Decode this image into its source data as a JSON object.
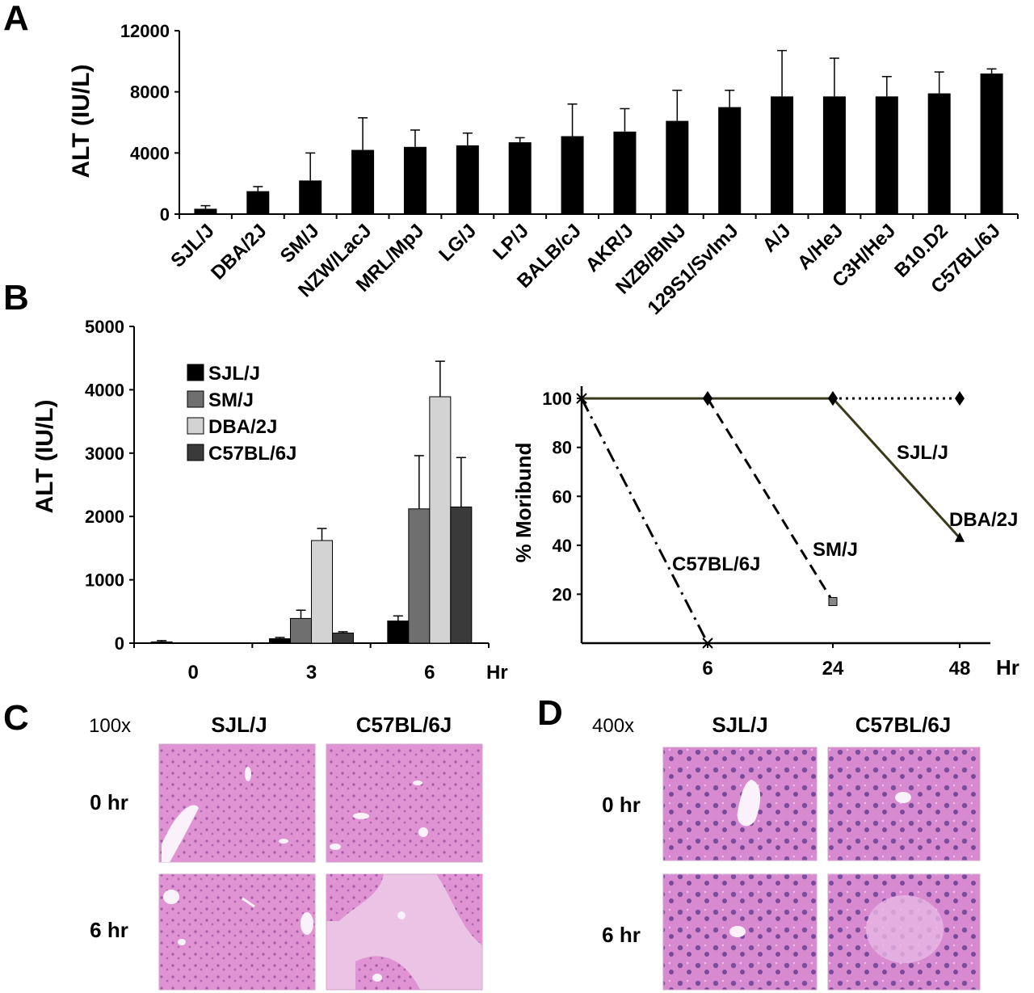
{
  "panels": {
    "a": "A",
    "b": "B",
    "c": "C",
    "d": "D"
  },
  "chart_data": [
    {
      "type": "bar",
      "ylabel": "ALT (IU/L)",
      "ylim": [
        0,
        12000
      ],
      "yticks": [
        "0",
        "4000",
        "8000",
        "12000"
      ],
      "categories": [
        "SJL/J",
        "DBA/2J",
        "SM/J",
        "NZW/LacJ",
        "MRL/MpJ",
        "LG/J",
        "LP/J",
        "BALB/cJ",
        "AKR/J",
        "NZB/BINJ",
        "129S1/SvImJ",
        "A/J",
        "A/HeJ",
        "C3H/HeJ",
        "B10.D2",
        "C57BL/6J"
      ],
      "values": [
        350,
        1500,
        2200,
        4200,
        4400,
        4500,
        4700,
        5100,
        5400,
        6100,
        7000,
        7700,
        7700,
        7700,
        7900,
        9200
      ],
      "errors": [
        200,
        300,
        1800,
        2100,
        1100,
        800,
        300,
        2100,
        1500,
        2000,
        1100,
        3000,
        2500,
        1300,
        1400,
        300
      ],
      "grid": false
    },
    {
      "type": "bar",
      "ylabel": "ALT (IU/L)",
      "ylim": [
        0,
        5000
      ],
      "yticks": [
        "0",
        "1000",
        "2000",
        "3000",
        "4000",
        "5000"
      ],
      "categories": [
        "0",
        "3",
        "6"
      ],
      "x_unit": "Hr",
      "legend_position": "top-left",
      "series": [
        {
          "name": "SJL/J",
          "color": "#000000",
          "values": [
            20,
            70,
            350
          ],
          "errors": [
            20,
            20,
            80
          ]
        },
        {
          "name": "SM/J",
          "color": "#6f6f6f",
          "values": [
            0,
            390,
            2120
          ],
          "errors": [
            0,
            130,
            840
          ]
        },
        {
          "name": "DBA/2J",
          "color": "#d3d3d3",
          "values": [
            0,
            1620,
            3890
          ],
          "errors": [
            0,
            190,
            560
          ]
        },
        {
          "name": "C57BL/6J",
          "color": "#3a3a3a",
          "values": [
            0,
            160,
            2150
          ],
          "errors": [
            0,
            20,
            780
          ]
        }
      ],
      "grid": false
    },
    {
      "type": "line",
      "ylabel": "% Moribund",
      "x_unit": "Hr",
      "ylim": [
        0,
        105
      ],
      "yticks": [
        "20",
        "40",
        "60",
        "80",
        "100"
      ],
      "x_categories": [
        "0",
        "6",
        "24",
        "48"
      ],
      "x_tick_labels": [
        "6",
        "24",
        "48"
      ],
      "series": [
        {
          "name": "SJL/J",
          "style": "dotted",
          "color": "#000000",
          "x": [
            "24",
            "48"
          ],
          "y": [
            100,
            100
          ]
        },
        {
          "name": "DBA/2J",
          "style": "solid",
          "color": "#3a3a1a",
          "x": [
            "0",
            "6",
            "24",
            "48"
          ],
          "y": [
            100,
            100,
            100,
            43
          ]
        },
        {
          "name": "SM/J",
          "style": "dashed",
          "color": "#000000",
          "x": [
            "6",
            "24"
          ],
          "y": [
            100,
            17
          ]
        },
        {
          "name": "C57BL/6J",
          "style": "dash-dot",
          "color": "#000000",
          "x": [
            "0",
            "6"
          ],
          "y": [
            100,
            0
          ]
        }
      ],
      "grid": false
    }
  ],
  "histology": {
    "c": {
      "magnification": "100x",
      "columns": [
        "SJL/J",
        "C57BL/6J"
      ],
      "rows": [
        "0 hr",
        "6 hr"
      ]
    },
    "d": {
      "magnification": "400x",
      "columns": [
        "SJL/J",
        "C57BL/6J"
      ],
      "rows": [
        "0 hr",
        "6 hr"
      ]
    }
  }
}
